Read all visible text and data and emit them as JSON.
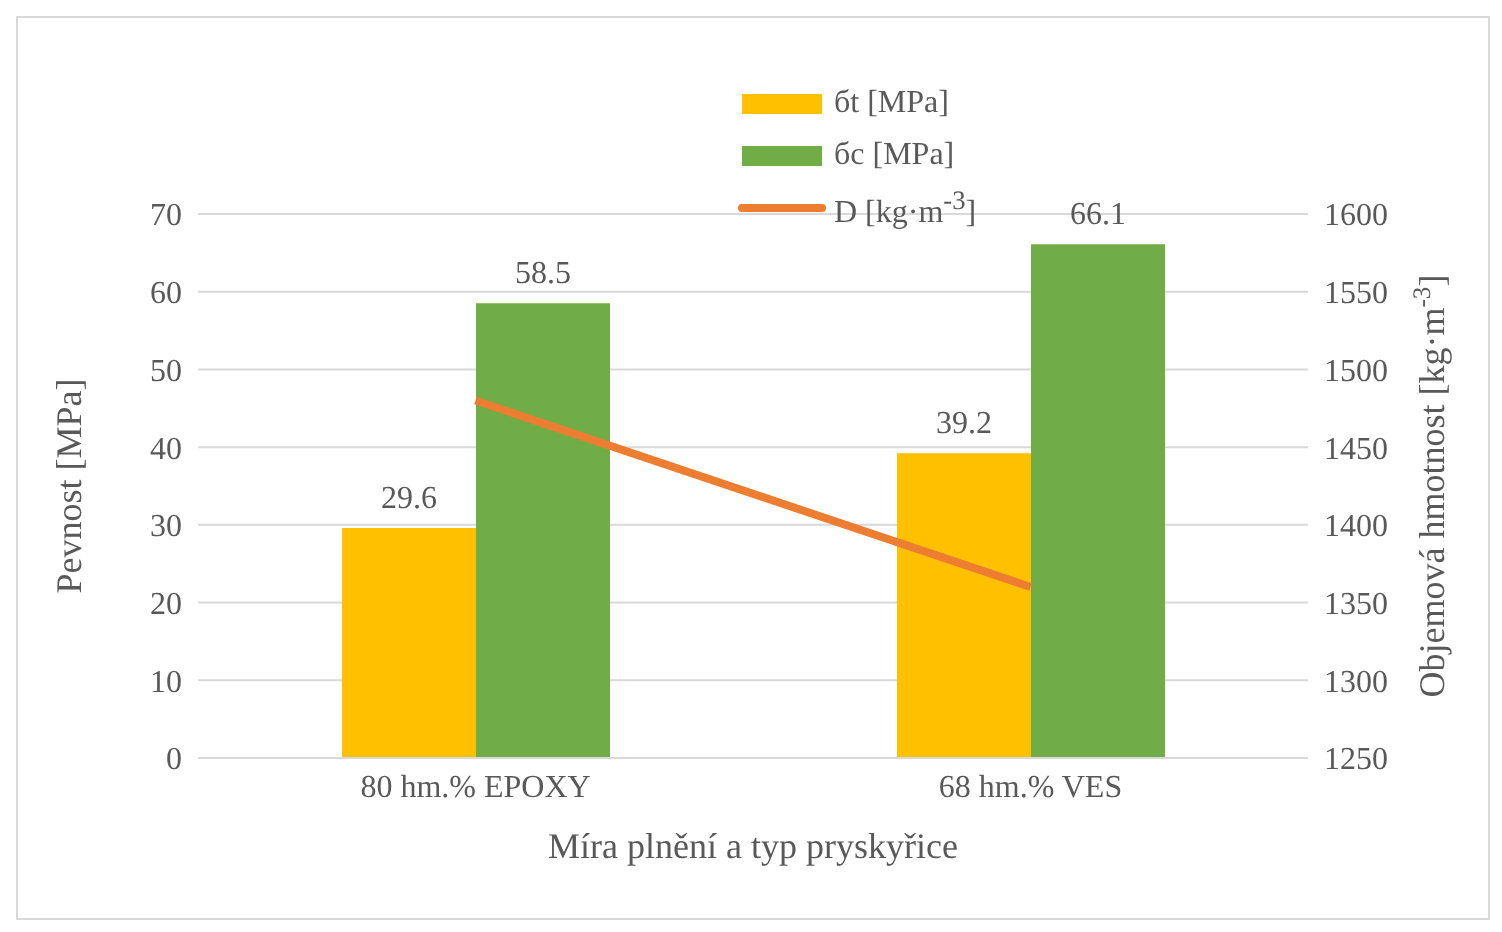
{
  "chart_data": {
    "type": "bar",
    "xlabel": "Míra plnění a typ pryskyřice",
    "ylabel": "Pevnost [MPa]",
    "y2label": "Objemová hmotnost [kg·m$^{-3}$]",
    "categories": [
      "80 hm.% EPOXY",
      "68 hm.% VES"
    ],
    "series": [
      {
        "name": "бt [MPa]",
        "color": "#ffc000",
        "values": [
          29.6,
          39.2
        ],
        "value_labels": [
          "29.6",
          "39.2"
        ]
      },
      {
        "name": "бc [MPa]",
        "color": "#70ad47",
        "values": [
          58.5,
          66.1
        ],
        "value_labels": [
          "58.5",
          "66.1"
        ]
      },
      {
        "name": "D [kg·m$^{-3}$]",
        "type": "line",
        "axis": "y2",
        "color": "#ed7d31",
        "values": [
          1480,
          1360
        ]
      }
    ],
    "ylim": [
      0,
      70
    ],
    "yticks": [
      0,
      10,
      20,
      30,
      40,
      50,
      60,
      70
    ],
    "y2lim": [
      1250,
      1600
    ],
    "y2ticks": [
      1250,
      1300,
      1350,
      1400,
      1450,
      1500,
      1550,
      1600
    ],
    "grid": "y",
    "legend": "top",
    "marker": "none",
    "line_style": "solid"
  }
}
